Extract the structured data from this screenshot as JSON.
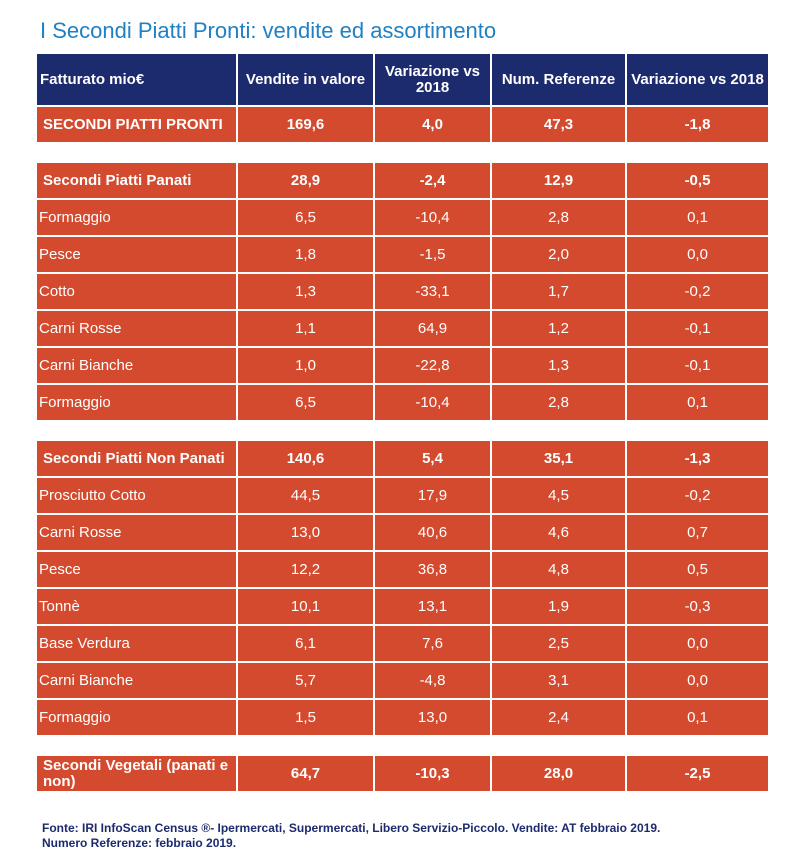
{
  "title": "I Secondi Piatti Pronti: vendite ed assortimento",
  "chart_data": {
    "type": "table",
    "columns": [
      "Fatturato mio€",
      "Vendite in valore",
      "Variazione vs 2018",
      "Num. Referenze",
      "Variazione vs 2018"
    ],
    "groups": [
      {
        "total": [
          "SECONDI PIATTI PRONTI",
          "169,6",
          "4,0",
          "47,3",
          "-1,8"
        ],
        "rows": []
      },
      {
        "total": [
          "Secondi Piatti Panati",
          "28,9",
          "-2,4",
          "12,9",
          "-0,5"
        ],
        "rows": [
          [
            "Formaggio",
            "6,5",
            "-10,4",
            "2,8",
            "0,1"
          ],
          [
            "Pesce",
            "1,8",
            "-1,5",
            "2,0",
            "0,0"
          ],
          [
            "Cotto",
            "1,3",
            "-33,1",
            "1,7",
            "-0,2"
          ],
          [
            "Carni Rosse",
            "1,1",
            "64,9",
            "1,2",
            "-0,1"
          ],
          [
            "Carni Bianche",
            "1,0",
            "-22,8",
            "1,3",
            "-0,1"
          ],
          [
            "Formaggio",
            "6,5",
            "-10,4",
            "2,8",
            "0,1"
          ]
        ]
      },
      {
        "total": [
          "Secondi Piatti Non Panati",
          "140,6",
          "5,4",
          "35,1",
          "-1,3"
        ],
        "rows": [
          [
            "Prosciutto Cotto",
            "44,5",
            "17,9",
            "4,5",
            "-0,2"
          ],
          [
            "Carni Rosse",
            "13,0",
            "40,6",
            "4,6",
            "0,7"
          ],
          [
            "Pesce",
            "12,2",
            "36,8",
            "4,8",
            "0,5"
          ],
          [
            "Tonnè",
            "10,1",
            "13,1",
            "1,9",
            "-0,3"
          ],
          [
            "Base Verdura",
            "6,1",
            "7,6",
            "2,5",
            "0,0"
          ],
          [
            "Carni Bianche",
            "5,7",
            "-4,8",
            "3,1",
            "0,0"
          ],
          [
            "Formaggio",
            "1,5",
            "13,0",
            "2,4",
            "0,1"
          ]
        ]
      },
      {
        "total": [
          "Secondi Vegetali (panati e non)",
          "64,7",
          "-10,3",
          "28,0",
          "-2,5"
        ],
        "rows": []
      }
    ]
  },
  "footer": {
    "line1": "Fonte: IRI InfoScan Census ®- Ipermercati, Supermercati, Libero Servizio-Piccolo. Vendite: AT febbraio 2019.",
    "line2": "Numero Referenze: febbraio 2019."
  },
  "colors": {
    "title": "#1f80c4",
    "header_bg": "#1c2a6e",
    "cell_bg": "#d34a2e",
    "cell_text": "#ffffff",
    "footer_text": "#1c2a6e"
  }
}
